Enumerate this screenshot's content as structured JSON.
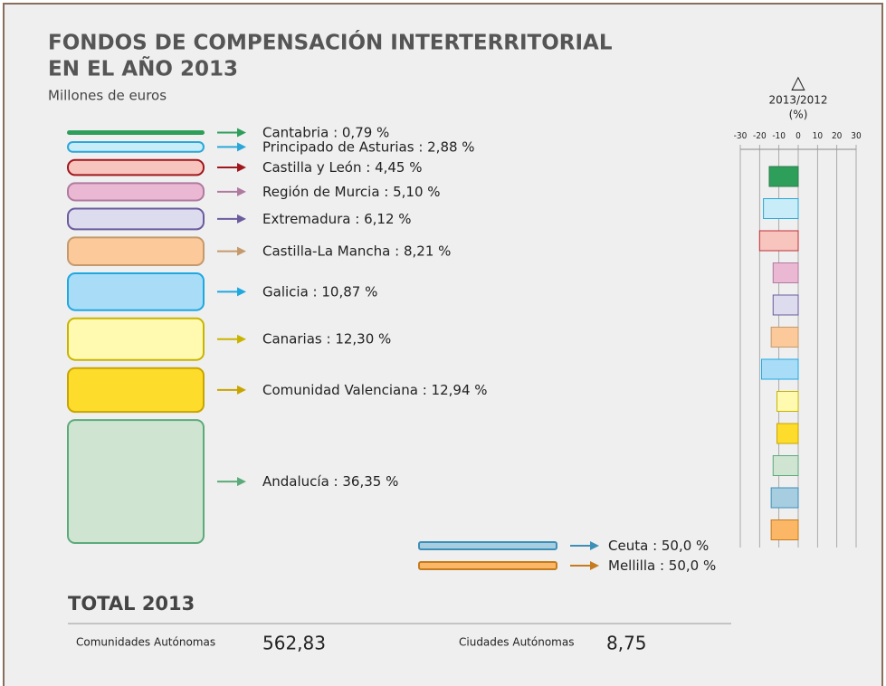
{
  "chart_data": [
    {
      "type": "boxes",
      "title": [
        "FONDOS DE COMPENSACIÓN INTERTERRITORIAL",
        "EN EL AÑO 2013"
      ],
      "subtitle": "Millones de euros",
      "separator": " : ",
      "categories": [
        "Cantabria",
        "Principado de Asturias",
        "Castilla y León",
        "Región de Murcia",
        "Extremadura",
        "Castilla-La Mancha",
        "Galicia",
        "Canarias",
        "Comunidad Valenciana",
        "Andalucía"
      ],
      "values": [
        0.79,
        2.88,
        4.45,
        5.1,
        6.12,
        8.21,
        10.87,
        12.3,
        12.94,
        36.35
      ],
      "value_labels": [
        "0,79 %",
        "2,88 %",
        "4,45 %",
        "5,10 %",
        "6,12 %",
        "8,21 %",
        "10,87 %",
        "12,30 %",
        "12,94 %",
        "36,35 %"
      ],
      "fills": [
        "#2e9e5b",
        "#c8ecf8",
        "#f7c5bd",
        "#ebb8d3",
        "#dddbee",
        "#fcc99a",
        "#a9dcf7",
        "#fffab0",
        "#fedc2c",
        "#cfe5d2"
      ],
      "colors": [
        "#2e9e5b",
        "#2aa7d8",
        "#a0161d",
        "#b07aa0",
        "#6b5c9e",
        "#c49a6c",
        "#1fa8e0",
        "#c8b400",
        "#c8a400",
        "#5caa7a"
      ]
    },
    {
      "type": "boxes-small",
      "separator": " : ",
      "categories": [
        "Ceuta",
        "Mellilla"
      ],
      "values": [
        50.0,
        50.0
      ],
      "value_labels": [
        "50,0 %",
        "50,0 %"
      ],
      "fills": [
        "#a6cde0",
        "#fbb766"
      ],
      "colors": [
        "#3e8fb8",
        "#c57b1f"
      ]
    },
    {
      "type": "hbar",
      "title": [
        "△",
        "2013/2012",
        "(%)"
      ],
      "values": [
        -15,
        -18,
        -20,
        -13,
        -13,
        -14,
        -19,
        -11,
        -11,
        -13,
        -14,
        -14
      ],
      "fills": [
        "#2e9e5b",
        "#c8ecf8",
        "#f7c5bd",
        "#ebb8d3",
        "#dddbee",
        "#fcc99a",
        "#a9dcf7",
        "#fffab0",
        "#fedc2c",
        "#cfe5d2",
        "#a6cde0",
        "#fbb766"
      ],
      "colors": [
        "#2e7d4b",
        "#2aa7d8",
        "#c0303a",
        "#b07aa0",
        "#6b5c9e",
        "#c49a6c",
        "#1fa8e0",
        "#c8b400",
        "#c8a400",
        "#5caa7a",
        "#3e8fb8",
        "#c57b1f"
      ],
      "xlim": [
        -30,
        30
      ],
      "xticks": [
        -30,
        -20,
        -10,
        0,
        10,
        20,
        30
      ]
    }
  ],
  "totals": {
    "title": "TOTAL 2013",
    "items": [
      {
        "label": "Comunidades Autónomas",
        "value": "562,83"
      },
      {
        "label": "Ciudades Autónomas",
        "value": "8,75"
      }
    ]
  }
}
